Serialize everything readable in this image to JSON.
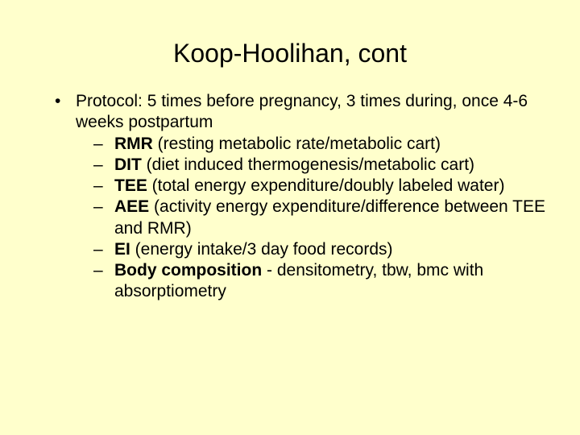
{
  "background_color": "#ffffcc",
  "text_color": "#000000",
  "title": {
    "text": "Koop-Hoolihan, cont",
    "fontsize": 32,
    "align": "center"
  },
  "body_fontsize": 21,
  "bullet": {
    "lead": "Protocol:  5 times before pregnancy, 3 times during, once 4-6 weeks postpartum",
    "subs": [
      {
        "bold": "RMR",
        "rest": " (resting metabolic rate/metabolic cart)"
      },
      {
        "bold": "DIT",
        "rest": " (diet induced thermogenesis/metabolic cart)"
      },
      {
        "bold": "TEE",
        "rest": " (total energy expenditure/doubly labeled water)"
      },
      {
        "bold": "AEE",
        "rest": " (activity energy expenditure/difference between TEE and RMR)"
      },
      {
        "bold": "EI",
        "rest": " (energy intake/3 day food records)"
      },
      {
        "bold": "Body composition",
        "rest": " - densitometry, tbw, bmc with absorptiometry"
      }
    ]
  }
}
